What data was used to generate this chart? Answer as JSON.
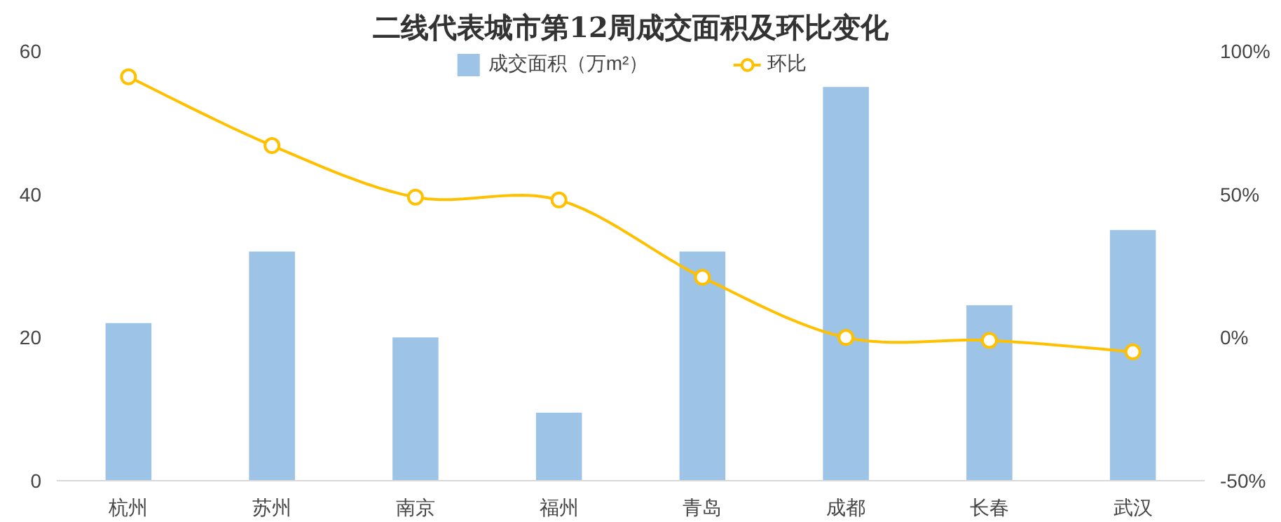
{
  "chart_data": {
    "type": "bar",
    "title": "二线代表城市第12周成交面积及环比变化",
    "categories": [
      "杭州",
      "苏州",
      "南京",
      "福州",
      "青岛",
      "成都",
      "长春",
      "武汉"
    ],
    "series": [
      {
        "name": "成交面积（万m²）",
        "color": "#9dc3e6",
        "values": [
          22,
          32,
          20,
          9.5,
          32,
          55,
          24.5,
          35
        ]
      },
      {
        "name": "环比",
        "type": "line",
        "axis": "y2",
        "color": "#ffc000",
        "marker": "circle",
        "values": [
          91,
          67,
          49,
          48,
          21,
          0,
          -1,
          -5
        ]
      }
    ],
    "ylim": [
      0,
      60
    ],
    "yticks": [
      0,
      20,
      40,
      60
    ],
    "y2lim": [
      -50,
      100
    ],
    "y2ticks": [
      {
        "value": -50,
        "label": "-50%"
      },
      {
        "value": 0,
        "label": "0%"
      },
      {
        "value": 50,
        "label": "50%"
      },
      {
        "value": 100,
        "label": "100%"
      }
    ],
    "grid": false,
    "legend": "top"
  }
}
